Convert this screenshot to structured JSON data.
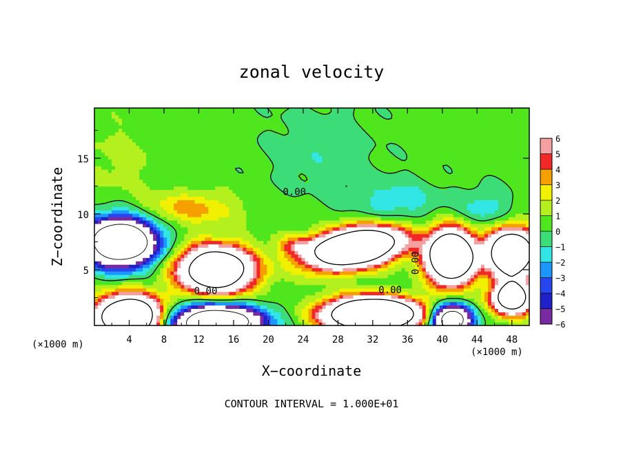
{
  "chart_data": {
    "type": "heatmap",
    "title": "zonal velocity",
    "xlabel": "X−coordinate",
    "ylabel": "Z−coordinate",
    "x_unit_left": "(×1000 m)",
    "x_unit_right": "(×1000 m)",
    "xlim": [
      0,
      50
    ],
    "ylim": [
      0,
      19.5
    ],
    "x_ticks": [
      {
        "v": 4,
        "label": "4"
      },
      {
        "v": 8,
        "label": "8"
      },
      {
        "v": 12,
        "label": "12"
      },
      {
        "v": 16,
        "label": "16"
      },
      {
        "v": 20,
        "label": "20"
      },
      {
        "v": 24,
        "label": "24"
      },
      {
        "v": 28,
        "label": "28"
      },
      {
        "v": 32,
        "label": "32"
      },
      {
        "v": 36,
        "label": "36"
      },
      {
        "v": 40,
        "label": "40"
      },
      {
        "v": 44,
        "label": "44"
      },
      {
        "v": 48,
        "label": "48"
      }
    ],
    "y_ticks": [
      {
        "v": 5,
        "label": "5"
      },
      {
        "v": 10,
        "label": "10"
      },
      {
        "v": 15,
        "label": "15"
      }
    ],
    "colorbar": {
      "min": -6,
      "max": 6,
      "levels": [
        {
          "from": -6,
          "to": -5,
          "color": "#7a2aa0"
        },
        {
          "from": -5,
          "to": -4,
          "color": "#2020c8"
        },
        {
          "from": -4,
          "to": -3,
          "color": "#2846f0"
        },
        {
          "from": -3,
          "to": -2,
          "color": "#1e96ff"
        },
        {
          "from": -2,
          "to": -1,
          "color": "#32e6e6"
        },
        {
          "from": -1,
          "to": 0,
          "color": "#3cdc78"
        },
        {
          "from": 0,
          "to": 1,
          "color": "#50e61e"
        },
        {
          "from": 1,
          "to": 2,
          "color": "#b4f01e"
        },
        {
          "from": 2,
          "to": 3,
          "color": "#f0f000"
        },
        {
          "from": 3,
          "to": 4,
          "color": "#f5a000"
        },
        {
          "from": 4,
          "to": 5,
          "color": "#f02828"
        },
        {
          "from": 5,
          "to": 6,
          "color": "#f5a0a0"
        }
      ],
      "ticks": [
        {
          "v": 6,
          "label": "6"
        },
        {
          "v": 5,
          "label": "5"
        },
        {
          "v": 4,
          "label": "4"
        },
        {
          "v": 3,
          "label": "3"
        },
        {
          "v": 2,
          "label": "2"
        },
        {
          "v": 1,
          "label": "1"
        },
        {
          "v": 0,
          "label": "0"
        },
        {
          "v": -1,
          "label": "−1"
        },
        {
          "v": -2,
          "label": "−2"
        },
        {
          "v": -3,
          "label": "−3"
        },
        {
          "v": -4,
          "label": "−4"
        },
        {
          "v": -5,
          "label": "−5"
        },
        {
          "v": -6,
          "label": "−6"
        }
      ]
    },
    "background_value": 0.4,
    "features": [
      {
        "x": 3,
        "z": 7.5,
        "rx": 3.8,
        "rz": 2.0,
        "amp": -20
      },
      {
        "x": 14,
        "z": 5.0,
        "rx": 4.0,
        "rz": 2.0,
        "amp": 18
      },
      {
        "x": 30,
        "z": 7.0,
        "rx": 5.0,
        "rz": 1.6,
        "amp": 22,
        "tilt": 0.45
      },
      {
        "x": 41,
        "z": 6.2,
        "rx": 2.6,
        "rz": 2.2,
        "amp": 22
      },
      {
        "x": 48,
        "z": 6.5,
        "rx": 2.6,
        "rz": 2.0,
        "amp": 20
      },
      {
        "x": 4,
        "z": 0.8,
        "rx": 3.6,
        "rz": 1.8,
        "amp": 20
      },
      {
        "x": 14,
        "z": 0.3,
        "rx": 5.0,
        "rz": 1.5,
        "amp": -18
      },
      {
        "x": 32,
        "z": 1.0,
        "rx": 5.0,
        "rz": 1.4,
        "amp": 24
      },
      {
        "x": 41,
        "z": 0.5,
        "rx": 2.2,
        "rz": 1.3,
        "amp": -16
      },
      {
        "x": 48,
        "z": 2.5,
        "rx": 2.2,
        "rz": 1.4,
        "amp": 16
      },
      {
        "x": 11,
        "z": 10.5,
        "rx": 5.5,
        "rz": 1.5,
        "amp": 3.0
      },
      {
        "x": 23,
        "z": 7.2,
        "rx": 2.0,
        "rz": 0.9,
        "amp": 3.0
      },
      {
        "x": 35,
        "z": 11.0,
        "rx": 5.0,
        "rz": 2.2,
        "amp": -2.0
      },
      {
        "x": 45,
        "z": 10.5,
        "rx": 3.0,
        "rz": 1.8,
        "amp": -2.0
      },
      {
        "x": 26,
        "z": 16.0,
        "rx": 6.0,
        "rz": 4.0,
        "amp": -1.2
      },
      {
        "x": 3,
        "z": 15.0,
        "rx": 4.0,
        "rz": 3.5,
        "amp": 1.0
      }
    ],
    "contour_labels": [
      {
        "x": 23.0,
        "z": 11.7,
        "label": "0.00"
      },
      {
        "x": 12.8,
        "z": 2.8,
        "label": "0.00"
      },
      {
        "x": 34.0,
        "z": 2.9,
        "label": "0.00"
      },
      {
        "x": 37.3,
        "z": 5.6,
        "label": "0.00",
        "rotate": -90
      }
    ],
    "contour_interval_text": "CONTOUR INTERVAL = 1.000E+01"
  }
}
